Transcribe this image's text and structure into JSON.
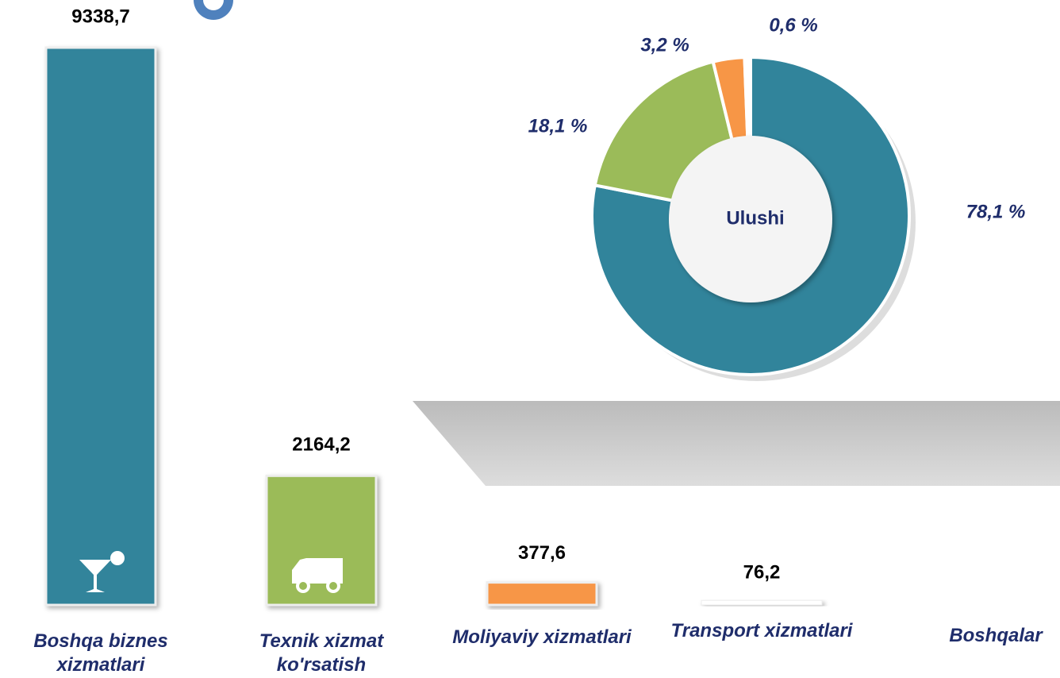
{
  "chart_data": [
    {
      "type": "bar",
      "categories": [
        "Boshqa biznes xizmatlari",
        "Texnik xizmat ko'rsatish",
        "Moliyaviy xizmatlari",
        "Transport xizmatlari",
        "Boshqalar"
      ],
      "values": [
        9338.7,
        2164.2,
        377.6,
        76.2,
        null
      ],
      "value_labels": [
        "9338,7",
        "2164,2",
        "377,6",
        "76,2",
        null
      ],
      "colors": [
        "#31849b",
        "#9bbb59",
        "#f79646",
        "#ffffff"
      ]
    },
    {
      "type": "donut",
      "center_label": "Ulushi",
      "values": [
        78.1,
        18.1,
        3.2,
        0.6
      ],
      "value_labels": [
        "78,1 %",
        "18,1 %",
        "3,2 %",
        "0,6 %"
      ],
      "colors": [
        "#31849b",
        "#9bbb59",
        "#f79646",
        "#ffffff"
      ]
    }
  ]
}
